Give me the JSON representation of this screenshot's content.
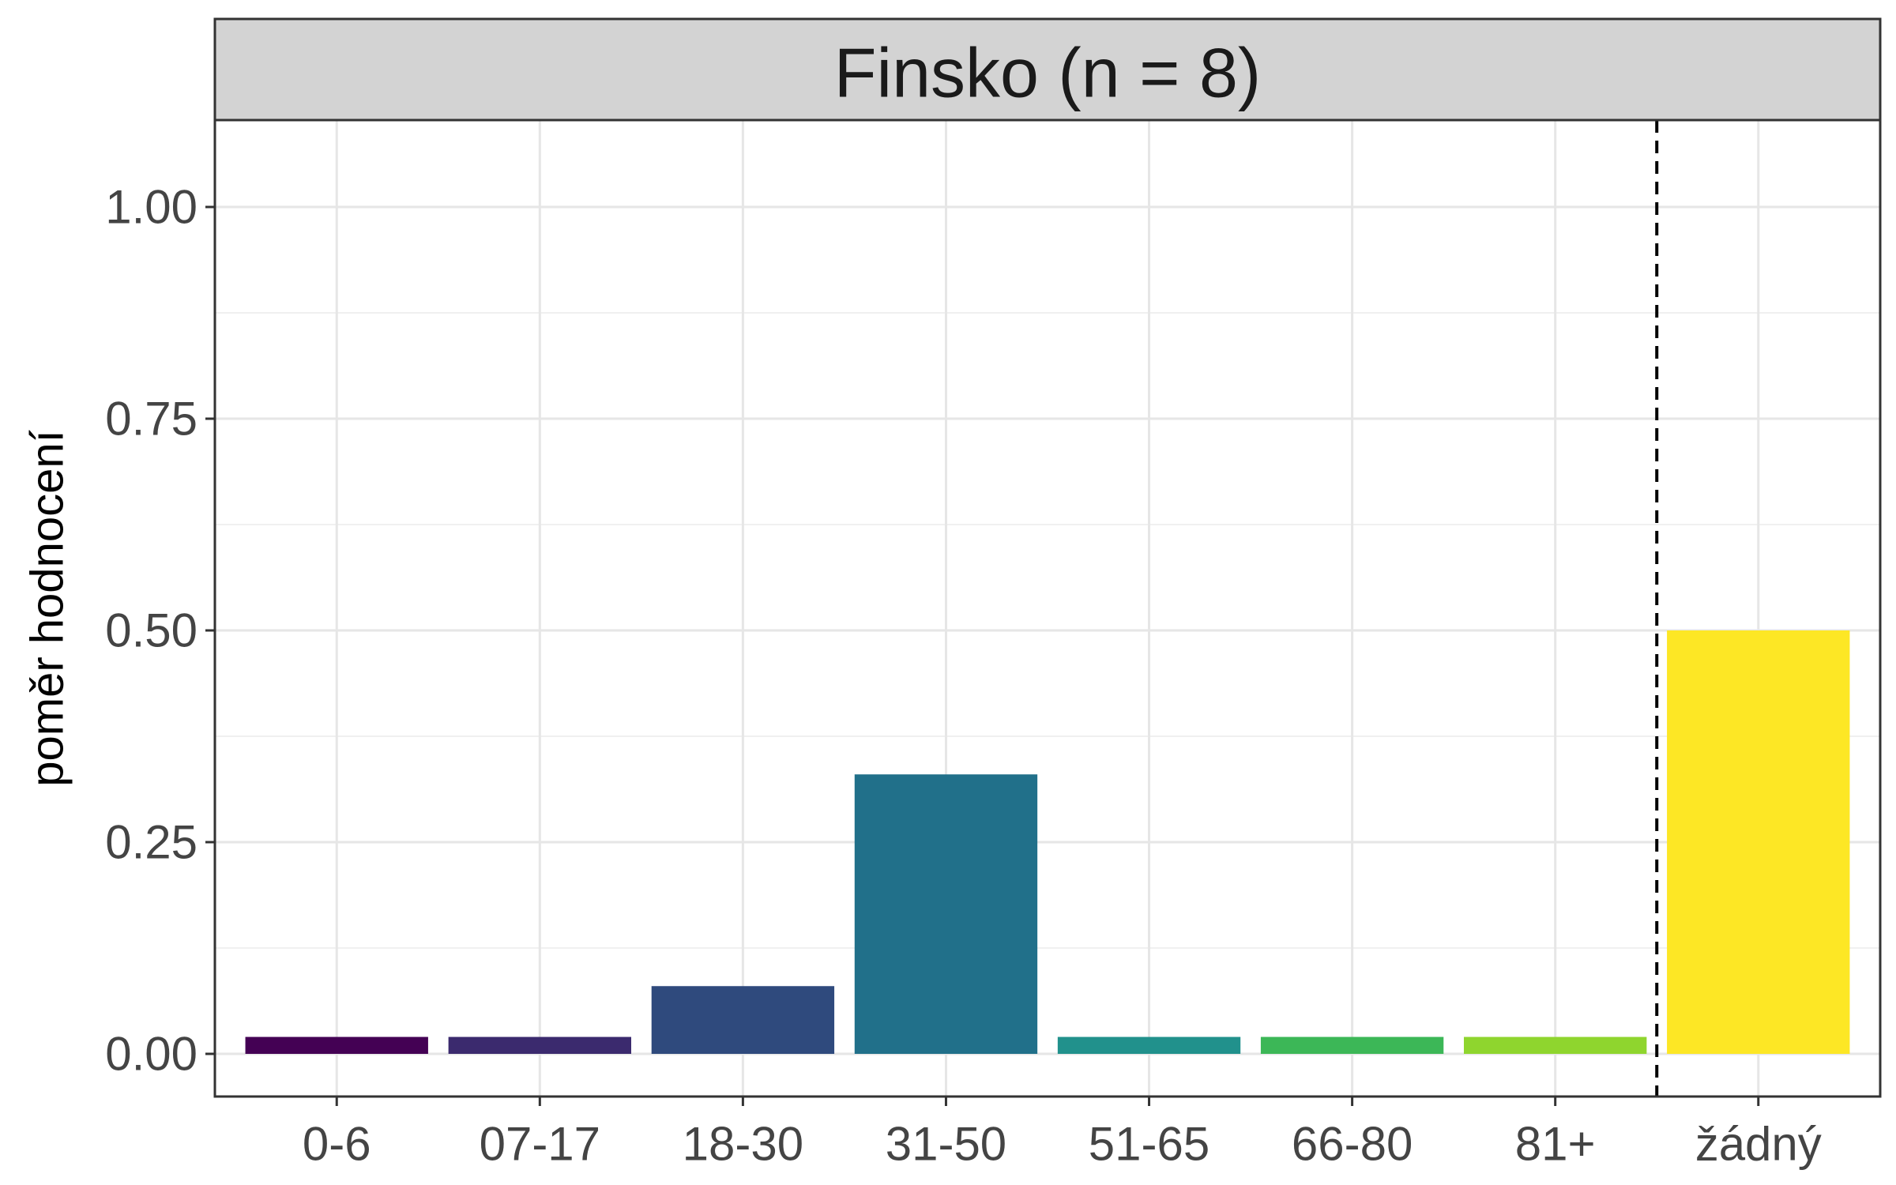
{
  "chart_data": {
    "type": "bar",
    "facet_title": "Finsko (n = 8)",
    "xlabel": "",
    "ylabel": "poměr hodnocení",
    "ylim": [
      0,
      1.1
    ],
    "y_ticks": [
      "0.00",
      "0.25",
      "0.50",
      "0.75",
      "1.00"
    ],
    "y_tick_values": [
      0,
      0.25,
      0.5,
      0.75,
      1.0
    ],
    "categories": [
      "0-6",
      "07-17",
      "18-30",
      "31-50",
      "51-65",
      "66-80",
      "81+",
      "žádný"
    ],
    "values": [
      0.02,
      0.02,
      0.08,
      0.33,
      0.02,
      0.02,
      0.02,
      0.5
    ],
    "colors": [
      "#440154",
      "#3b2a6e",
      "#2f4a7d",
      "#21708a",
      "#21918c",
      "#3cb757",
      "#8fd52e",
      "#fde725"
    ],
    "separator_after_category": "81+",
    "grid": true,
    "legend": "none"
  }
}
